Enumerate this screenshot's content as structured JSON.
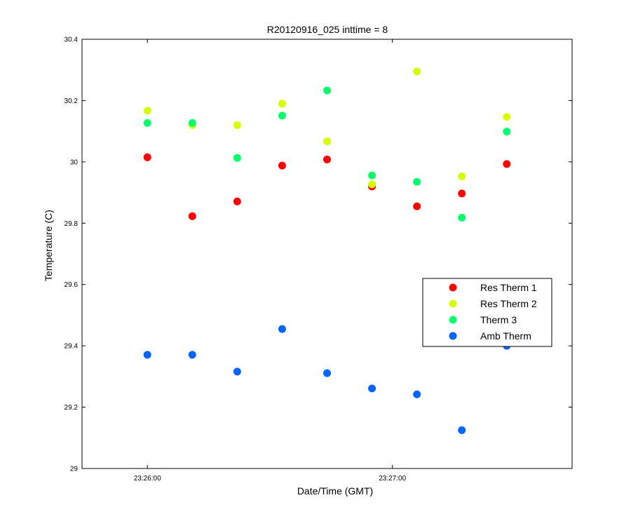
{
  "chart_data": {
    "type": "scatter",
    "title": "R20120916_025 inttime = 8",
    "xlabel": "Date/Time (GMT)",
    "ylabel": "Temperature (C)",
    "xlim": [
      "23:25:44",
      "23:27:44"
    ],
    "ylim": [
      29,
      30.4
    ],
    "x_ticks": [
      "23:26:00",
      "23:27:00"
    ],
    "y_ticks": [
      "29",
      "29.2",
      "29.4",
      "29.6",
      "29.8",
      "30",
      "30.2",
      "30.4"
    ],
    "grid": false,
    "legend_position": "right",
    "x": [
      "23:26:00",
      "23:26:11",
      "23:26:22",
      "23:26:33",
      "23:26:44",
      "23:26:55",
      "23:27:06",
      "23:27:17",
      "23:27:28"
    ],
    "series": [
      {
        "name": "Res Therm 1",
        "color": "#ff0000",
        "values": [
          30.015,
          29.823,
          29.871,
          29.988,
          30.008,
          29.92,
          29.855,
          29.897,
          29.993
        ]
      },
      {
        "name": "Res Therm 2",
        "color": "#d4ff00",
        "values": [
          30.167,
          30.12,
          30.12,
          30.19,
          30.067,
          29.927,
          30.295,
          29.953,
          30.147
        ]
      },
      {
        "name": "Therm 3",
        "color": "#00ff6a",
        "values": [
          30.127,
          30.127,
          30.013,
          30.151,
          30.233,
          29.956,
          29.935,
          29.818,
          30.099
        ]
      },
      {
        "name": "Amb Therm",
        "color": "#0066ff",
        "values": [
          29.371,
          29.371,
          29.316,
          29.455,
          29.311,
          29.261,
          29.242,
          29.125,
          29.4
        ]
      }
    ]
  }
}
